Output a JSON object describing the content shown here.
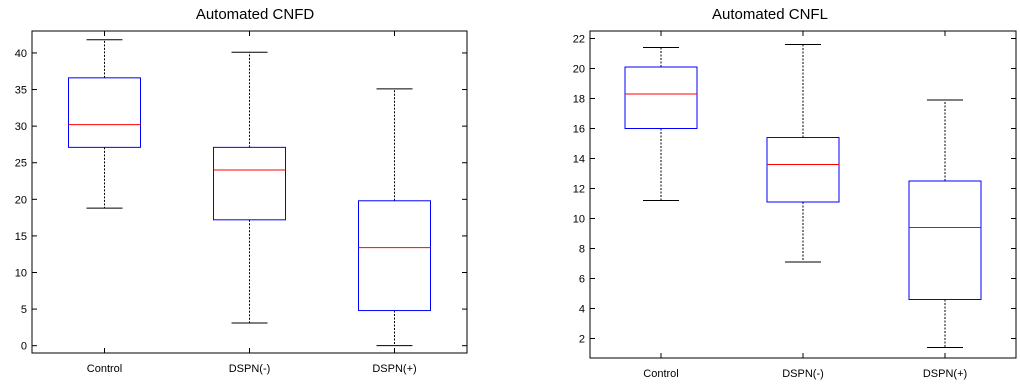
{
  "chart_data": [
    {
      "type": "box",
      "title": "Automated CNFD",
      "xlabel": "",
      "ylabel": "",
      "categories": [
        "Control",
        "DSPN(-)",
        "DSPN(+)"
      ],
      "ylim": [
        -1,
        43
      ],
      "yticks": [
        0,
        5,
        10,
        15,
        20,
        25,
        30,
        35,
        40
      ],
      "grid": false,
      "boxes": [
        {
          "min": 18.8,
          "q1": 27.1,
          "median": 30.2,
          "q3": 36.6,
          "max": 41.8
        },
        {
          "min": 3.1,
          "q1": 17.2,
          "median": 24.0,
          "q3": 27.1,
          "max": 40.1
        },
        {
          "min": 0.0,
          "q1": 4.8,
          "median": 13.4,
          "q3": 19.8,
          "max": 35.1
        }
      ],
      "colors": {
        "box": "#0000ff",
        "median": "#ff0000",
        "whisker": "#000000",
        "axis": "#000000"
      }
    },
    {
      "type": "box",
      "title": "Automated CNFL",
      "xlabel": "",
      "ylabel": "",
      "categories": [
        "Control",
        "DSPN(-)",
        "DSPN(+)"
      ],
      "ylim": [
        0.7,
        22.5
      ],
      "yticks": [
        2,
        4,
        6,
        8,
        10,
        12,
        14,
        16,
        18,
        20,
        22
      ],
      "grid": false,
      "boxes": [
        {
          "min": 11.2,
          "q1": 16.0,
          "median": 18.3,
          "q3": 20.1,
          "max": 21.4
        },
        {
          "min": 7.1,
          "q1": 11.1,
          "median": 13.6,
          "q3": 15.4,
          "max": 21.6
        },
        {
          "min": 1.4,
          "q1": 4.6,
          "median": 9.4,
          "q3": 12.5,
          "max": 17.9
        }
      ],
      "colors": {
        "box": "#0000ff",
        "median": "#ff0000",
        "whisker": "#000000",
        "axis": "#000000"
      }
    }
  ]
}
